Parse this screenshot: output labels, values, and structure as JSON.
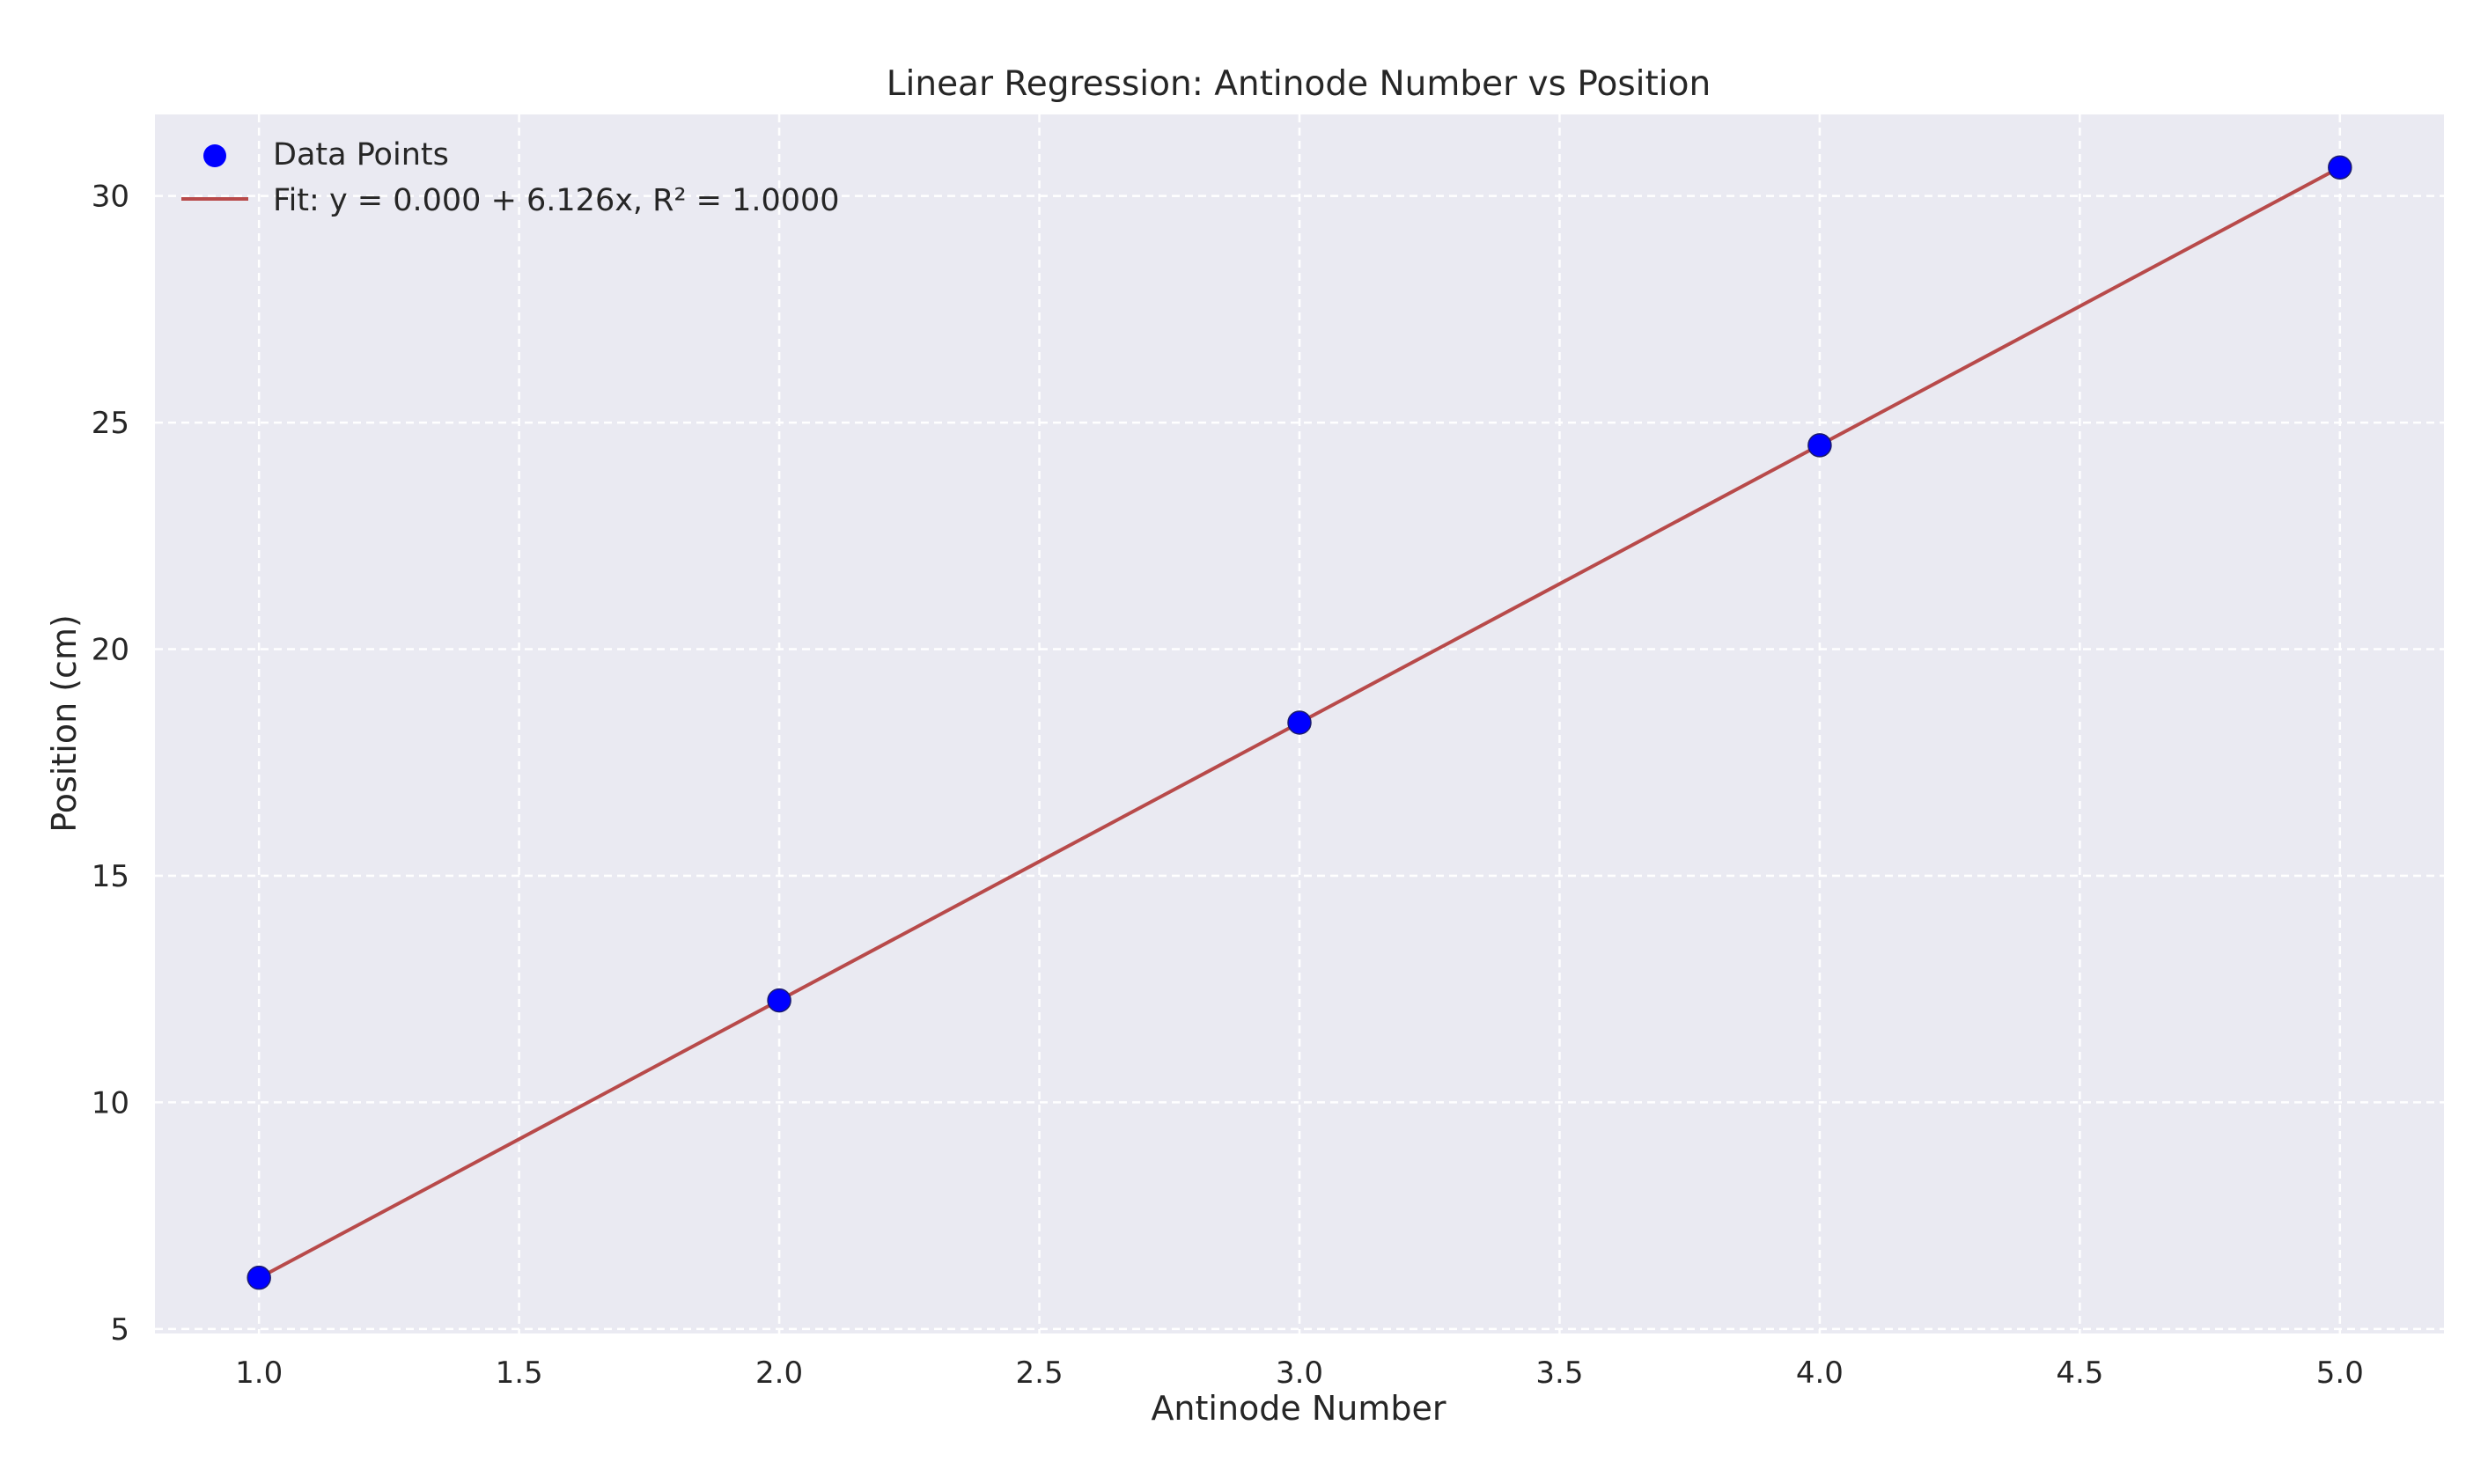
{
  "chart_data": {
    "type": "scatter",
    "title": "Linear Regression: Antinode Number vs Position",
    "xlabel": "Antinode Number",
    "ylabel": "Position (cm)",
    "xlim": [
      0.8,
      5.2
    ],
    "ylim": [
      4.9,
      31.8
    ],
    "xticks": [
      1.0,
      1.5,
      2.0,
      2.5,
      3.0,
      3.5,
      4.0,
      4.5,
      5.0
    ],
    "xtick_labels": [
      "1.0",
      "1.5",
      "2.0",
      "2.5",
      "3.0",
      "3.5",
      "4.0",
      "4.5",
      "5.0"
    ],
    "yticks": [
      5,
      10,
      15,
      20,
      25,
      30
    ],
    "ytick_labels": [
      "5",
      "10",
      "15",
      "20",
      "25",
      "30"
    ],
    "grid": true,
    "grid_style": "dashed",
    "background": "#eaeaf2",
    "legend_position": "top-left",
    "series": [
      {
        "name": "Data Points",
        "kind": "scatter",
        "color": "#0000ff",
        "x": [
          1,
          2,
          3,
          4,
          5
        ],
        "y": [
          6.13,
          12.25,
          18.38,
          24.5,
          30.63
        ]
      },
      {
        "name": "Fit: y = 0.000 + 6.126x, R² = 1.0000",
        "kind": "line",
        "color": "#b84a4a",
        "intercept": 0.0,
        "slope": 6.126,
        "x": [
          1,
          5
        ],
        "y": [
          6.126,
          30.63
        ]
      }
    ]
  }
}
